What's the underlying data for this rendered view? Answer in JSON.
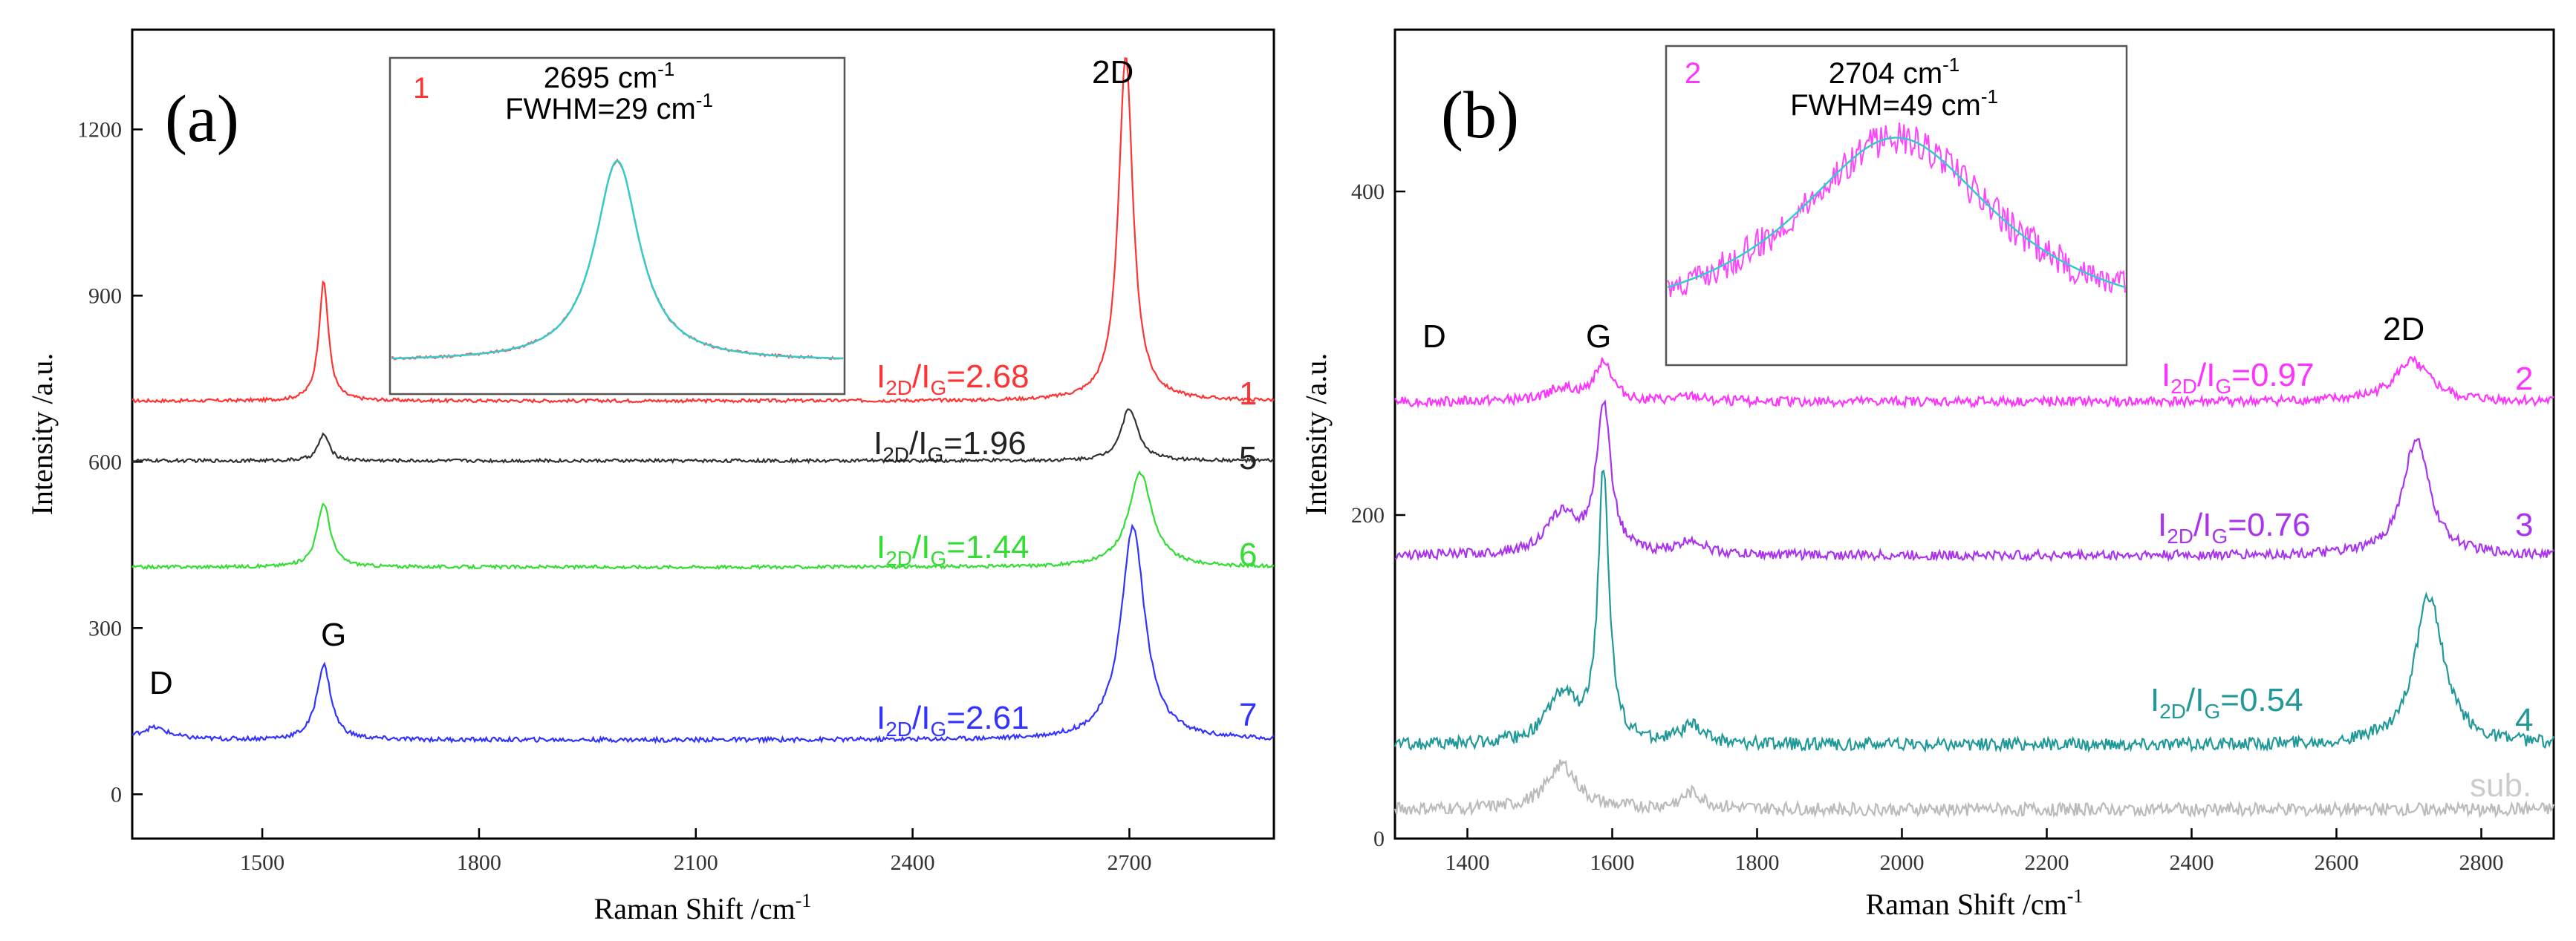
{
  "chart_data": [
    {
      "panel": "(a)",
      "type": "line",
      "xlabel": "Raman Shift /cm",
      "xlabel_sup": "-1",
      "ylabel": "Intensity /a.u.",
      "xlim": [
        1320,
        2900
      ],
      "ylim": [
        -80,
        1380
      ],
      "xticks": [
        1500,
        1800,
        2100,
        2400,
        2700
      ],
      "yticks": [
        0,
        300,
        600,
        900,
        1200
      ],
      "peak_labels": {
        "D": "D",
        "G": "G",
        "2D": "2D"
      },
      "series": [
        {
          "name": "1",
          "color": "#ff3333",
          "baseline": 710,
          "d_height": 0,
          "g_height": 215,
          "g_width": 8,
          "d2_center": 2695,
          "d2_height": 625,
          "d2_width": 12,
          "noise": 3,
          "ratio_main": "I",
          "ratio_sub1": "2D",
          "ratio_mid": "/I",
          "ratio_sub2": "G",
          "ratio_value": "=2.68"
        },
        {
          "name": "5",
          "color": "#333333",
          "baseline": 602,
          "d_height": 0,
          "g_height": 48,
          "g_width": 9,
          "d2_center": 2700,
          "d2_height": 95,
          "d2_width": 14,
          "noise": 3,
          "ratio_main": "I",
          "ratio_sub1": "2D",
          "ratio_mid": "/I",
          "ratio_sub2": "G",
          "ratio_value": "=1.96"
        },
        {
          "name": "6",
          "color": "#33dd33",
          "baseline": 410,
          "d_height": 0,
          "g_height": 115,
          "g_width": 11,
          "d2_center": 2715,
          "d2_height": 170,
          "d2_width": 20,
          "noise": 3,
          "ratio_main": "I",
          "ratio_sub1": "2D",
          "ratio_mid": "/I",
          "ratio_sub2": "G",
          "ratio_value": "=1.44"
        },
        {
          "name": "7",
          "color": "#3333ff",
          "baseline": 98,
          "d_height": 22,
          "g_height": 135,
          "g_width": 12,
          "d2_center": 2705,
          "d2_height": 385,
          "d2_width": 20,
          "noise": 4,
          "ratio_main": "I",
          "ratio_sub1": "2D",
          "ratio_mid": "/I",
          "ratio_sub2": "G",
          "ratio_value": "=2.61"
        }
      ],
      "inset": {
        "label": "1",
        "label_color": "#ff3333",
        "line1": "2695 cm",
        "line1_sup": "-1",
        "line2": "FWHM=29 cm",
        "line2_sup": "-1",
        "data_color": "#ff5555",
        "fit_color": "#33cccc"
      }
    },
    {
      "panel": "(b)",
      "type": "line",
      "xlabel": "Raman Shift /cm",
      "xlabel_sup": "-1",
      "ylabel": "Intensity /a.u.",
      "xlim": [
        1300,
        2900
      ],
      "ylim": [
        0,
        500
      ],
      "xticks": [
        1400,
        1600,
        1800,
        2000,
        2200,
        2400,
        2600,
        2800
      ],
      "yticks": [
        0,
        200,
        400
      ],
      "peak_labels": {
        "D": "D",
        "G": "G",
        "2D": "2D"
      },
      "series": [
        {
          "name": "2",
          "color": "#ff33ff",
          "baseline": 270,
          "d_height": 8,
          "g_height": 25,
          "g_width": 14,
          "d2_center": 2704,
          "d2_height": 25,
          "d2_width": 30,
          "noise": 3,
          "ratio_main": "I",
          "ratio_sub1": "2D",
          "ratio_mid": "/I",
          "ratio_sub2": "G",
          "ratio_value": "=0.97"
        },
        {
          "name": "3",
          "color": "#aa33ee",
          "baseline": 175,
          "d_height": 25,
          "g_height": 92,
          "g_width": 12,
          "d2_center": 2710,
          "d2_height": 72,
          "d2_width": 22,
          "noise": 3,
          "ratio_main": "I",
          "ratio_sub1": "2D",
          "ratio_mid": "/I",
          "ratio_sub2": "G",
          "ratio_value": "=0.76"
        },
        {
          "name": "4",
          "color": "#229999",
          "baseline": 58,
          "d_height": 30,
          "g_height": 168,
          "g_width": 9,
          "d2_center": 2728,
          "d2_height": 92,
          "d2_width": 24,
          "noise": 4,
          "ratio_main": "I",
          "ratio_sub1": "2D",
          "ratio_mid": "/I",
          "ratio_sub2": "G",
          "ratio_value": "=0.54"
        },
        {
          "name": "sub.",
          "color": "#bbbbbb",
          "baseline": 18,
          "d_height": 28,
          "g_height": 0,
          "g_width": 10,
          "d2_center": 2700,
          "d2_height": 0,
          "d2_width": 20,
          "noise": 4,
          "ratio_main": "",
          "ratio_sub1": "",
          "ratio_mid": "",
          "ratio_sub2": "",
          "ratio_value": ""
        }
      ],
      "inset": {
        "label": "2",
        "label_color": "#ff33ff",
        "line1": "2704 cm",
        "line1_sup": "-1",
        "line2": "FWHM=49 cm",
        "line2_sup": "-1",
        "data_color": "#ff44ff",
        "fit_color": "#33cccc"
      }
    }
  ]
}
